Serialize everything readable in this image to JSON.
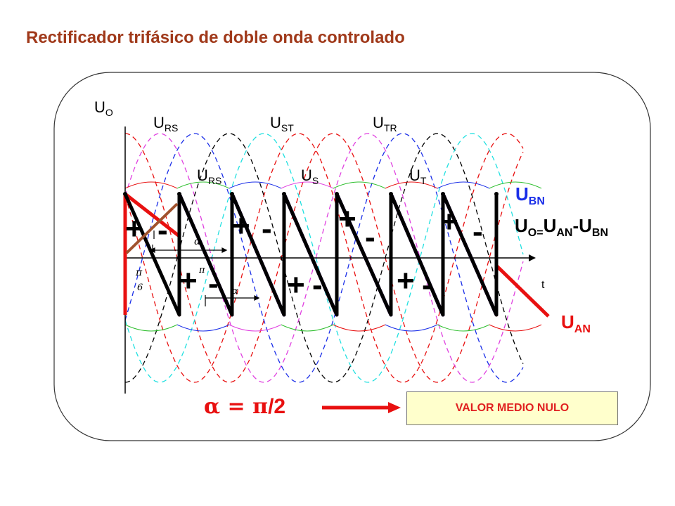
{
  "title": "Rectificador trifásico de doble onda controlado",
  "axis": {
    "y_label": "U",
    "y_sub": "O",
    "x_label": "t"
  },
  "line_voltages": [
    {
      "main": "U",
      "sub": "RS"
    },
    {
      "main": "U",
      "sub": "ST"
    },
    {
      "main": "U",
      "sub": "TR"
    }
  ],
  "phase_voltages": [
    {
      "main": "U",
      "sub": "RS"
    },
    {
      "main": "U",
      "sub": "S"
    },
    {
      "main": "U",
      "sub": "T"
    }
  ],
  "legend": {
    "ubn": {
      "main": "U",
      "sub": "BN"
    },
    "uo": {
      "main": "U",
      "sub1": "O=",
      "mid": "U",
      "sub2": "AN",
      "dash": "-U",
      "sub3": "BN"
    },
    "uan": {
      "main": "U",
      "sub": "AN"
    }
  },
  "angles": {
    "alpha": "α",
    "pi6_top": "π",
    "pi6_bottom": "6",
    "pi_small": "π"
  },
  "formula": {
    "alpha": "α",
    "equals": " = ",
    "pi": "π",
    "rest": "/2"
  },
  "result": "VALOR MEDIO NULO",
  "colors": {
    "title": "#a0391a",
    "red": "#e81010",
    "blue": "#1a2ee8",
    "black": "#000000",
    "green": "#2fbf2f",
    "magenta": "#e040e0",
    "cyan": "#20e0e0",
    "box_fill": "#ffffcc",
    "box_text": "#e02020"
  },
  "symbols": {
    "plus": "+",
    "minus": "-"
  }
}
